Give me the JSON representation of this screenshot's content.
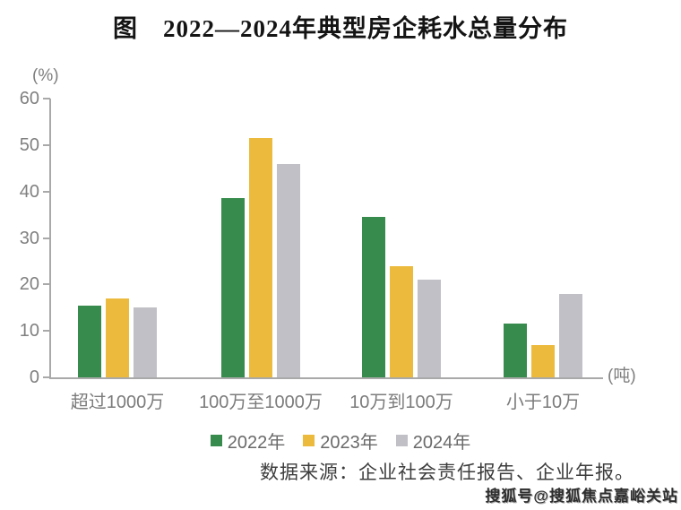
{
  "title": "图　2022—2024年典型房企耗水总量分布",
  "chart_data": {
    "type": "bar",
    "categories": [
      "超过1000万",
      "100万至1000万",
      "10万到100万",
      "小于10万"
    ],
    "series": [
      {
        "name": "2022年",
        "color": "#378b4c",
        "values": [
          15.5,
          38.5,
          34.5,
          11.5
        ]
      },
      {
        "name": "2023年",
        "color": "#ecba3d",
        "values": [
          17,
          51.5,
          24,
          7
        ]
      },
      {
        "name": "2024年",
        "color": "#c1c0c6",
        "values": [
          15,
          46,
          21,
          18
        ]
      }
    ],
    "y_axis": {
      "unit": "(%)",
      "min": 0,
      "max": 60,
      "tick_step": 10,
      "ticks": [
        0,
        10,
        20,
        30,
        40,
        50,
        60
      ]
    },
    "x_axis": {
      "unit": "(吨)"
    },
    "legend_position": "bottom",
    "grid": false
  },
  "source": "数据来源：企业社会责任报告、企业年报。",
  "watermark": "搜狐号@搜狐焦点嘉峪关站",
  "colors": {
    "axis": "#a9a9a9",
    "tick_label": "#808080",
    "category_label": "#7b7b7b",
    "legend_label": "#6a6a6a",
    "title": "#141414",
    "source": "#3d3d3d",
    "watermark": "#2e2e2e"
  }
}
